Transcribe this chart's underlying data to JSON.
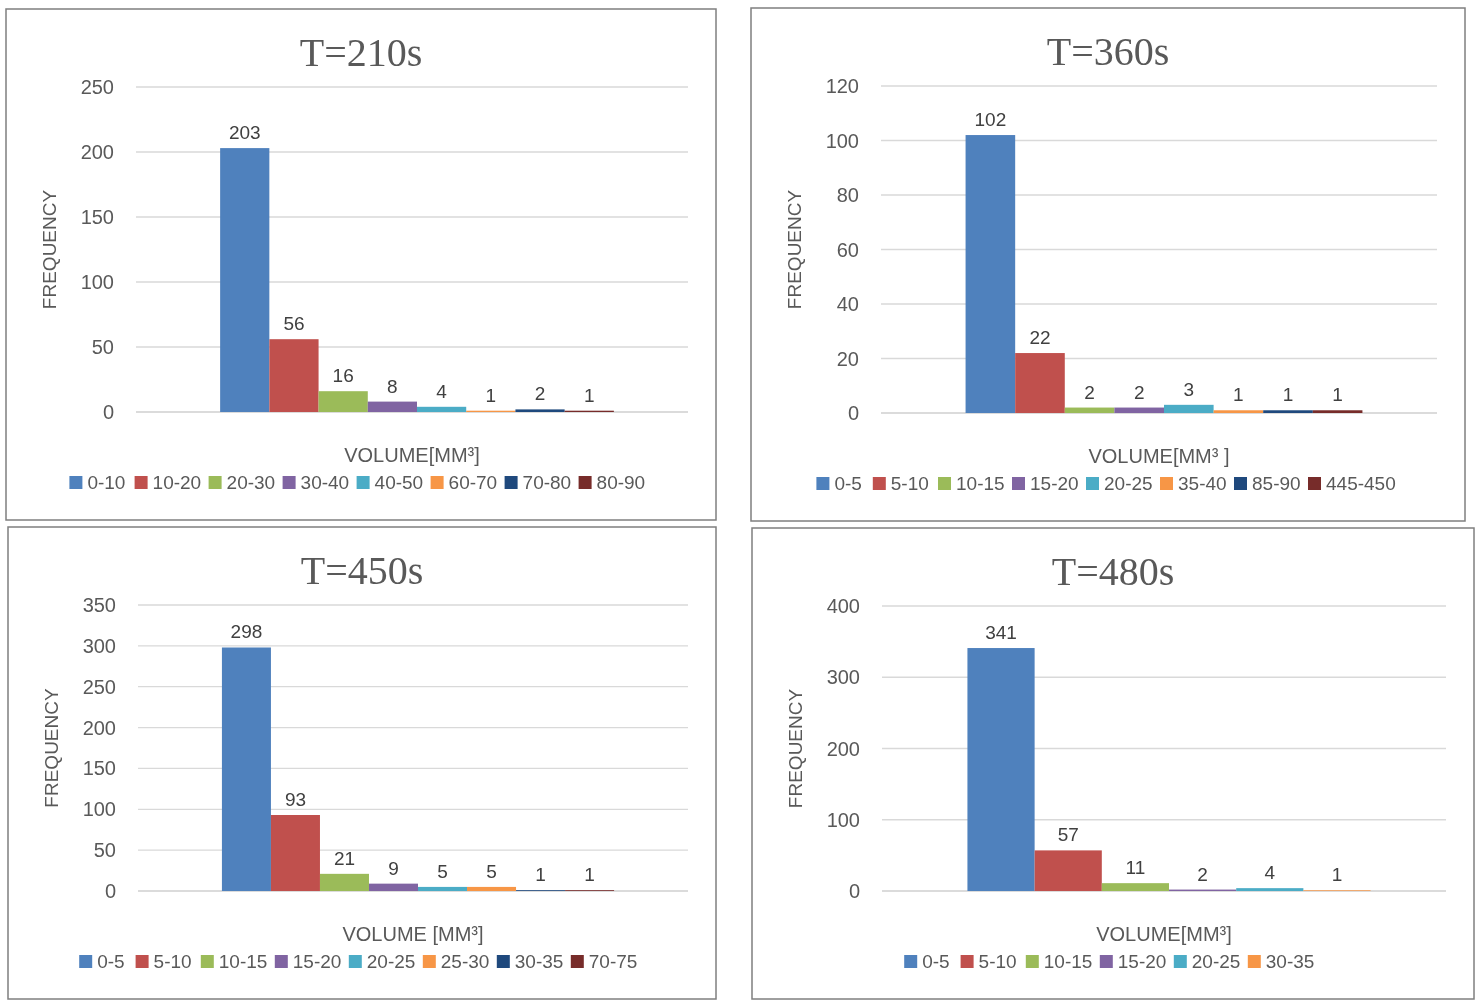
{
  "chart_data": [
    {
      "type": "bar",
      "title": "T=210s",
      "xlabel": "VOLUME[MM³]",
      "ylabel": "FREQUENCY",
      "categories": [
        null
      ],
      "ylim": [
        0,
        250
      ],
      "yticks": [
        0,
        50,
        100,
        150,
        200,
        250
      ],
      "grid": "y",
      "legend": "bottom",
      "data_labels": true,
      "series": [
        {
          "name": "0-10",
          "color": "#4f81bd",
          "values": [
            203
          ]
        },
        {
          "name": "10-20",
          "color": "#c0504d",
          "values": [
            56
          ]
        },
        {
          "name": "20-30",
          "color": "#9bbb59",
          "values": [
            16
          ]
        },
        {
          "name": "30-40",
          "color": "#8064a2",
          "values": [
            8
          ]
        },
        {
          "name": "40-50",
          "color": "#4bacc6",
          "values": [
            4
          ]
        },
        {
          "name": "60-70",
          "color": "#f79646",
          "values": [
            1
          ]
        },
        {
          "name": "70-80",
          "color": "#1f497d",
          "values": [
            2
          ]
        },
        {
          "name": "80-90",
          "color": "#772c2a",
          "values": [
            1
          ]
        }
      ]
    },
    {
      "type": "bar",
      "title": "T=360s",
      "xlabel": "VOLUME[MM³ ]",
      "ylabel": "FREQUENCY",
      "categories": [
        null
      ],
      "ylim": [
        0,
        120
      ],
      "yticks": [
        0,
        20,
        40,
        60,
        80,
        100,
        120
      ],
      "grid": "y",
      "legend": "bottom",
      "data_labels": true,
      "series": [
        {
          "name": "0-5",
          "color": "#4f81bd",
          "values": [
            102
          ]
        },
        {
          "name": "5-10",
          "color": "#c0504d",
          "values": [
            22
          ]
        },
        {
          "name": "10-15",
          "color": "#9bbb59",
          "values": [
            2
          ]
        },
        {
          "name": "15-20",
          "color": "#8064a2",
          "values": [
            2
          ]
        },
        {
          "name": "20-25",
          "color": "#4bacc6",
          "values": [
            3
          ]
        },
        {
          "name": "35-40",
          "color": "#f79646",
          "values": [
            1
          ]
        },
        {
          "name": "85-90",
          "color": "#1f497d",
          "values": [
            1
          ]
        },
        {
          "name": "445-450",
          "color": "#772c2a",
          "values": [
            1
          ]
        }
      ]
    },
    {
      "type": "bar",
      "title": "T=450s",
      "xlabel": "VOLUME [MM³]",
      "ylabel": "FREQUENCY",
      "categories": [
        null
      ],
      "ylim": [
        0,
        350
      ],
      "yticks": [
        0,
        50,
        100,
        150,
        200,
        250,
        300,
        350
      ],
      "grid": "y",
      "legend": "bottom",
      "data_labels": true,
      "series": [
        {
          "name": "0-5",
          "color": "#4f81bd",
          "values": [
            298
          ]
        },
        {
          "name": "5-10",
          "color": "#c0504d",
          "values": [
            93
          ]
        },
        {
          "name": "10-15",
          "color": "#9bbb59",
          "values": [
            21
          ]
        },
        {
          "name": "15-20",
          "color": "#8064a2",
          "values": [
            9
          ]
        },
        {
          "name": "20-25",
          "color": "#4bacc6",
          "values": [
            5
          ]
        },
        {
          "name": "25-30",
          "color": "#f79646",
          "values": [
            5
          ]
        },
        {
          "name": "30-35",
          "color": "#1f497d",
          "values": [
            1
          ]
        },
        {
          "name": "70-75",
          "color": "#772c2a",
          "values": [
            1
          ]
        }
      ]
    },
    {
      "type": "bar",
      "title": "T=480s",
      "xlabel": "VOLUME[MM³]",
      "ylabel": "FREQUENCY",
      "categories": [
        null
      ],
      "ylim": [
        0,
        400
      ],
      "yticks": [
        0,
        100,
        200,
        300,
        400
      ],
      "grid": "y",
      "legend": "bottom",
      "data_labels": true,
      "series": [
        {
          "name": "0-5",
          "color": "#4f81bd",
          "values": [
            341
          ]
        },
        {
          "name": "5-10",
          "color": "#c0504d",
          "values": [
            57
          ]
        },
        {
          "name": "10-15",
          "color": "#9bbb59",
          "values": [
            11
          ]
        },
        {
          "name": "15-20",
          "color": "#8064a2",
          "values": [
            2
          ]
        },
        {
          "name": "20-25",
          "color": "#4bacc6",
          "values": [
            4
          ]
        },
        {
          "name": "30-35",
          "color": "#f79646",
          "values": [
            1
          ]
        }
      ]
    }
  ]
}
